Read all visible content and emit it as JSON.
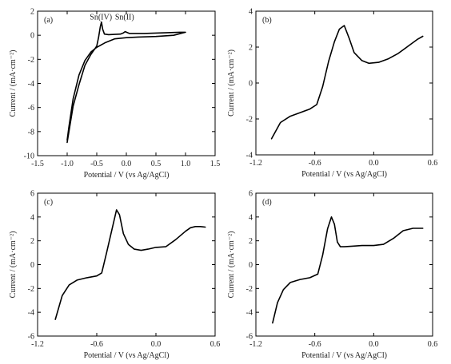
{
  "chart_data": [
    {
      "panel": "(a)",
      "type": "line",
      "xlabel": "Potential / V (vs Ag/AgCl)",
      "ylabel": "Current / (mA·cm⁻²)",
      "xlim": [
        -1.5,
        1.5
      ],
      "ylim": [
        -10,
        2
      ],
      "xticks": [
        -1.5,
        -1.0,
        -0.5,
        0.0,
        0.5,
        1.0,
        1.5
      ],
      "xtick_labels": [
        "-1.5",
        "-1.0",
        "-0.5",
        "0.0",
        "0.5",
        "1.0",
        "1.5"
      ],
      "yticks": [
        -10,
        -8,
        -6,
        -4,
        -2,
        0,
        2
      ],
      "ytick_labels": [
        "-10",
        "-8",
        "-6",
        "-4",
        "-2",
        "0",
        "2"
      ],
      "annotations": [
        {
          "text": "Sn(IV)",
          "x": -0.43,
          "y": 1.3
        },
        {
          "text": "Sn(II)",
          "x": -0.03,
          "y": 1.3
        }
      ],
      "series": [
        {
          "x": [
            -1.0,
            -0.9,
            -0.8,
            -0.7,
            -0.6,
            -0.5,
            -0.47,
            -0.44,
            -0.42,
            -0.4,
            -0.37,
            -0.3,
            -0.1,
            -0.05,
            -0.02,
            0.05,
            0.3,
            0.6,
            0.9,
            1.0,
            0.8,
            0.5,
            0.2,
            0.0,
            -0.2,
            -0.35,
            -0.5,
            -0.6,
            -0.7,
            -0.8,
            -0.9,
            -0.97,
            -1.0
          ],
          "y": [
            -8.9,
            -5.9,
            -4.1,
            -2.5,
            -1.6,
            -0.9,
            -0.2,
            0.7,
            1.1,
            0.5,
            0.1,
            0.05,
            0.1,
            0.2,
            0.3,
            0.15,
            0.15,
            0.2,
            0.25,
            0.25,
            0.0,
            -0.1,
            -0.15,
            -0.2,
            -0.3,
            -0.6,
            -1.0,
            -1.4,
            -2.1,
            -3.3,
            -5.3,
            -7.6,
            -8.7
          ]
        }
      ]
    },
    {
      "panel": "(b)",
      "type": "line",
      "xlabel": "Potential / V (vs Ag/AgCl)",
      "ylabel": "Current / (mA·cm⁻²)",
      "xlim": [
        -1.2,
        0.6
      ],
      "ylim": [
        -4,
        4
      ],
      "xticks": [
        -1.2,
        -0.6,
        0.0,
        0.6
      ],
      "xtick_labels": [
        "-1.2",
        "-0.6",
        "0.0",
        "0.6"
      ],
      "yticks": [
        -4,
        -2,
        0,
        2,
        4
      ],
      "ytick_labels": [
        "-4",
        "-2",
        "0",
        "2",
        "4"
      ],
      "series": [
        {
          "x": [
            -1.04,
            -0.95,
            -0.85,
            -0.75,
            -0.65,
            -0.58,
            -0.52,
            -0.46,
            -0.4,
            -0.35,
            -0.3,
            -0.25,
            -0.2,
            -0.12,
            -0.05,
            0.05,
            0.15,
            0.25,
            0.35,
            0.45,
            0.5
          ],
          "y": [
            -3.1,
            -2.2,
            -1.85,
            -1.65,
            -1.45,
            -1.2,
            -0.2,
            1.2,
            2.3,
            3.0,
            3.2,
            2.5,
            1.7,
            1.25,
            1.1,
            1.15,
            1.35,
            1.65,
            2.05,
            2.45,
            2.6
          ]
        }
      ]
    },
    {
      "panel": "(c)",
      "type": "line",
      "xlabel": "Potential / V (vs Ag/AgCl)",
      "ylabel": "Current / (mA·cm⁻²)",
      "xlim": [
        -1.2,
        0.6
      ],
      "ylim": [
        -6,
        6
      ],
      "xticks": [
        -1.2,
        -0.6,
        0.0,
        0.6
      ],
      "xtick_labels": [
        "-1.2",
        "-0.6",
        "0.0",
        "0.6"
      ],
      "yticks": [
        -6,
        -4,
        -2,
        0,
        2,
        4,
        6
      ],
      "ytick_labels": [
        "-6",
        "-4",
        "-2",
        "0",
        "2",
        "4",
        "6"
      ],
      "series": [
        {
          "x": [
            -1.02,
            -0.95,
            -0.88,
            -0.8,
            -0.7,
            -0.6,
            -0.55,
            -0.5,
            -0.45,
            -0.4,
            -0.37,
            -0.33,
            -0.28,
            -0.22,
            -0.15,
            -0.08,
            0.0,
            0.1,
            0.2,
            0.3,
            0.35,
            0.4,
            0.45,
            0.5
          ],
          "y": [
            -4.6,
            -2.6,
            -1.7,
            -1.3,
            -1.1,
            -0.95,
            -0.7,
            1.0,
            2.8,
            4.6,
            4.2,
            2.6,
            1.7,
            1.3,
            1.2,
            1.3,
            1.45,
            1.5,
            2.1,
            2.8,
            3.1,
            3.2,
            3.2,
            3.15
          ]
        }
      ]
    },
    {
      "panel": "(d)",
      "type": "line",
      "xlabel": "Potential / V (vs Ag/AgCl)",
      "ylabel": "Current / (mA·cm⁻²)",
      "xlim": [
        -1.2,
        0.6
      ],
      "ylim": [
        -6,
        6
      ],
      "xticks": [
        -1.2,
        -0.6,
        0.0,
        0.6
      ],
      "xtick_labels": [
        "-1.2",
        "-0.6",
        "0.0",
        "0.6"
      ],
      "yticks": [
        -6,
        -4,
        -2,
        0,
        2,
        4,
        6
      ],
      "ytick_labels": [
        "-6",
        "-4",
        "-2",
        "0",
        "2",
        "4",
        "6"
      ],
      "series": [
        {
          "x": [
            -1.03,
            -0.98,
            -0.92,
            -0.85,
            -0.75,
            -0.65,
            -0.57,
            -0.52,
            -0.47,
            -0.43,
            -0.4,
            -0.37,
            -0.34,
            -0.3,
            -0.22,
            -0.12,
            0.0,
            0.1,
            0.2,
            0.3,
            0.4,
            0.45,
            0.5
          ],
          "y": [
            -4.9,
            -3.2,
            -2.1,
            -1.5,
            -1.25,
            -1.1,
            -0.8,
            0.8,
            3.0,
            4.0,
            3.4,
            1.9,
            1.5,
            1.5,
            1.55,
            1.6,
            1.6,
            1.7,
            2.2,
            2.85,
            3.05,
            3.05,
            3.05
          ]
        }
      ]
    }
  ]
}
